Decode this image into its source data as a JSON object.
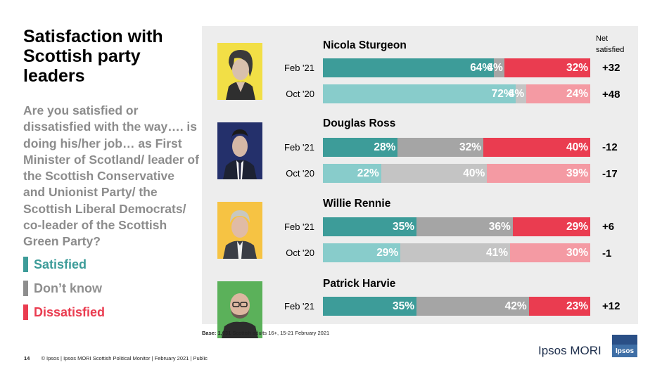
{
  "title": "Satisfaction with Scottish party leaders",
  "question": "Are you satisfied or dissatisfied with the way…. is doing his/her job… as First Minister of Scotland/ leader of the Scottish Conservative and Unionist Party/ the Scottish Liberal Democrats/ co-leader of the Scottish Green Party?",
  "legend": [
    {
      "label": "Satisfied",
      "color": "#3d9c99"
    },
    {
      "label": "Don’t know",
      "color": "#8e8e8e"
    },
    {
      "label": "Dissatisfied",
      "color": "#ea3c50"
    }
  ],
  "net_header": [
    "Net",
    "satisfied"
  ],
  "colors": {
    "satisfied_current": "#3d9c99",
    "satisfied_previous": "#88cccb",
    "dontknow_current": "#a5a5a5",
    "dontknow_previous": "#c4c4c4",
    "dissatisfied_current": "#ea3c50",
    "dissatisfied_previous": "#f49aa3"
  },
  "chart_data": {
    "type": "bar",
    "stacked": true,
    "orientation": "horizontal",
    "series_names": [
      "Satisfied",
      "Don't know",
      "Dissatisfied"
    ],
    "leaders": [
      {
        "name": "Nicola Sturgeon",
        "rows": [
          {
            "period": "Feb '21",
            "satisfied": 64,
            "dont_know": 4,
            "dissatisfied": 32,
            "net": "+32"
          },
          {
            "period": "Oct '20",
            "satisfied": 72,
            "dont_know": 4,
            "dissatisfied": 24,
            "net": "+48"
          }
        ]
      },
      {
        "name": "Douglas Ross",
        "rows": [
          {
            "period": "Feb '21",
            "satisfied": 28,
            "dont_know": 32,
            "dissatisfied": 40,
            "net": "-12"
          },
          {
            "period": "Oct '20",
            "satisfied": 22,
            "dont_know": 40,
            "dissatisfied": 39,
            "net": "-17"
          }
        ]
      },
      {
        "name": "Willie Rennie",
        "rows": [
          {
            "period": "Feb '21",
            "satisfied": 35,
            "dont_know": 36,
            "dissatisfied": 29,
            "net": "+6"
          },
          {
            "period": "Oct '20",
            "satisfied": 29,
            "dont_know": 41,
            "dissatisfied": 30,
            "net": "-1"
          }
        ]
      },
      {
        "name": "Patrick Harvie",
        "rows": [
          {
            "period": "Feb '21",
            "satisfied": 35,
            "dont_know": 42,
            "dissatisfied": 23,
            "net": "+12"
          }
        ]
      }
    ]
  },
  "base_note": {
    "bold": "Base: 1,031",
    "text": " Scottish adults 16+, 15-21 February 2021"
  },
  "footer": {
    "page": "14",
    "text": "© Ipsos | Ipsos MORI Scottish Political Monitor | February 2021 | Public"
  },
  "brand": {
    "name": "Ipsos MORI",
    "logo_text": "Ipsos"
  }
}
